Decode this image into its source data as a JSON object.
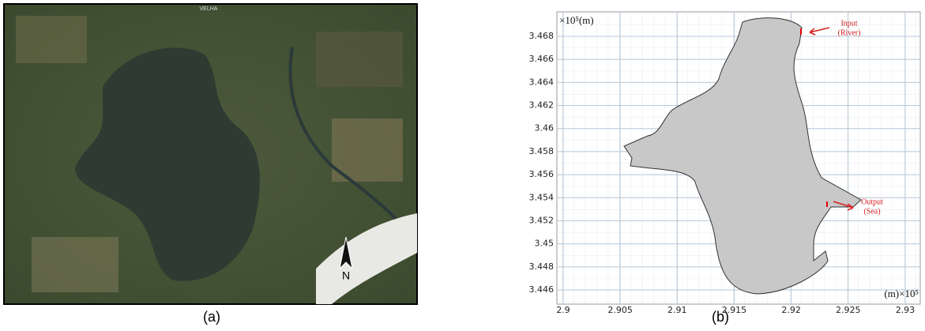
{
  "panel_a": {
    "caption": "(a)",
    "map_label": "VELHA",
    "north_label": "N"
  },
  "chart_data": {
    "type": "shape",
    "caption": "(b)",
    "x_label": "(m)×10⁵",
    "y_label": "×10⁵(m)",
    "annotations": [
      {
        "title": "Input",
        "subtitle": "(River)"
      },
      {
        "title": "Output",
        "subtitle": "(Sea)"
      }
    ],
    "xlim": [
      2.89945,
      2.93132
    ],
    "xticks": [
      2.9,
      2.905,
      2.91,
      2.915,
      2.92,
      2.925,
      2.93
    ],
    "ylim": [
      3.44477,
      3.47012
    ],
    "yticks": [
      3.446,
      3.448,
      3.45,
      3.452,
      3.454,
      3.456,
      3.458,
      3.46,
      3.462,
      3.464,
      3.466,
      3.468
    ],
    "grid": true,
    "fill_color": "#c8c8c8"
  }
}
